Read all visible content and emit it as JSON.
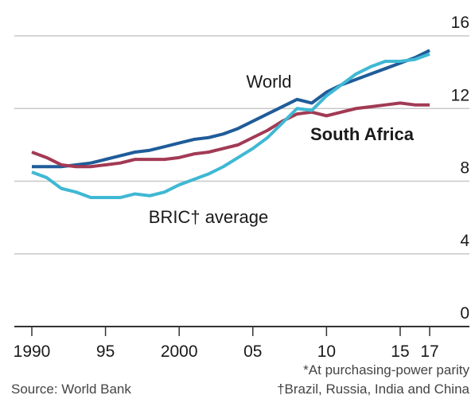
{
  "chart_data": {
    "type": "line",
    "x": [
      1990,
      1991,
      1992,
      1993,
      1994,
      1995,
      1996,
      1997,
      1998,
      1999,
      2000,
      2001,
      2002,
      2003,
      2004,
      2005,
      2006,
      2007,
      2008,
      2009,
      2010,
      2011,
      2012,
      2013,
      2014,
      2015,
      2016,
      2017
    ],
    "series": [
      {
        "name": "World",
        "color": "#1f5c99",
        "values": [
          8.8,
          8.8,
          8.8,
          8.9,
          9.0,
          9.2,
          9.4,
          9.6,
          9.7,
          9.9,
          10.1,
          10.3,
          10.4,
          10.6,
          10.9,
          11.3,
          11.7,
          12.1,
          12.5,
          12.3,
          12.9,
          13.3,
          13.6,
          13.9,
          14.2,
          14.5,
          14.8,
          15.2
        ]
      },
      {
        "name": "South Africa",
        "color": "#a23a54",
        "values": [
          9.6,
          9.3,
          8.9,
          8.8,
          8.8,
          8.9,
          9.0,
          9.2,
          9.2,
          9.2,
          9.3,
          9.5,
          9.6,
          9.8,
          10.0,
          10.4,
          10.8,
          11.3,
          11.7,
          11.8,
          11.6,
          11.8,
          12.0,
          12.1,
          12.2,
          12.3,
          12.2,
          12.2
        ]
      },
      {
        "name": "BRIC† average",
        "color": "#3fb8d4",
        "values": [
          8.5,
          8.2,
          7.6,
          7.4,
          7.1,
          7.1,
          7.1,
          7.3,
          7.2,
          7.4,
          7.8,
          8.1,
          8.4,
          8.8,
          9.3,
          9.8,
          10.4,
          11.2,
          12.0,
          11.9,
          12.7,
          13.3,
          13.9,
          14.3,
          14.6,
          14.6,
          14.7,
          15.0
        ]
      }
    ],
    "xlim": [
      1990,
      2017
    ],
    "xticks": [
      1990,
      {
        "value": 1995,
        "label": "95"
      },
      2000,
      {
        "value": 2005,
        "label": "05"
      },
      {
        "value": 2010,
        "label": "10"
      },
      {
        "value": 2015,
        "label": "15"
      },
      {
        "value": 2017,
        "label": "17"
      }
    ],
    "ylim": [
      0,
      16
    ],
    "yticks": [
      0,
      4,
      8,
      12,
      16
    ],
    "grid": true,
    "source": "Source: World Bank",
    "notes": [
      "*At purchasing-power parity",
      "†Brazil, Russia, India and China"
    ]
  }
}
